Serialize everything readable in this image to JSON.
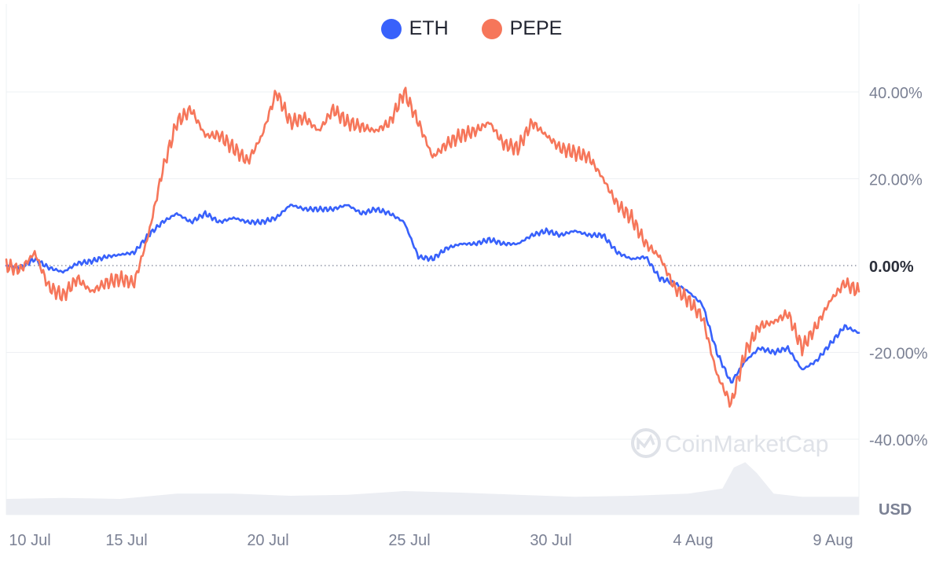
{
  "chart_data": {
    "type": "line",
    "title": "",
    "xlabel": "",
    "ylabel": "",
    "unit_label": "USD",
    "watermark": "CoinMarketCap",
    "x_ticks": [
      "10 Jul",
      "15 Jul",
      "20 Jul",
      "25 Jul",
      "30 Jul",
      "4 Aug",
      "9 Aug"
    ],
    "y_ticks": [
      "40.00%",
      "20.00%",
      "0.00%",
      "-20.00%",
      "-40.00%"
    ],
    "y_tick_values": [
      40,
      20,
      0,
      -20,
      -40
    ],
    "ylim": [
      -50,
      45
    ],
    "x_range_days": [
      0,
      30
    ],
    "legend_position": "top-center",
    "grid": true,
    "series": [
      {
        "name": "ETH",
        "color": "#3861FB",
        "points": [
          [
            0,
            0
          ],
          [
            0.5,
            -0.5
          ],
          [
            1,
            1.5
          ],
          [
            1.5,
            -0.5
          ],
          [
            2,
            -1.5
          ],
          [
            2.5,
            0.5
          ],
          [
            3,
            1
          ],
          [
            3.5,
            2
          ],
          [
            4,
            2.5
          ],
          [
            4.5,
            3
          ],
          [
            5,
            7
          ],
          [
            5.5,
            10
          ],
          [
            6,
            12
          ],
          [
            6.5,
            10
          ],
          [
            7,
            12
          ],
          [
            7.5,
            10
          ],
          [
            8,
            11
          ],
          [
            8.5,
            10
          ],
          [
            9,
            10
          ],
          [
            9.5,
            11
          ],
          [
            10,
            14
          ],
          [
            10.5,
            13
          ],
          [
            11,
            13
          ],
          [
            11.5,
            13
          ],
          [
            12,
            14
          ],
          [
            12.5,
            12
          ],
          [
            13,
            13
          ],
          [
            13.5,
            12
          ],
          [
            14,
            10
          ],
          [
            14.5,
            2
          ],
          [
            15,
            1.5
          ],
          [
            15.5,
            4
          ],
          [
            16,
            5
          ],
          [
            16.5,
            5
          ],
          [
            17,
            6
          ],
          [
            17.5,
            5
          ],
          [
            18,
            5
          ],
          [
            18.5,
            7
          ],
          [
            19,
            8
          ],
          [
            19.5,
            7
          ],
          [
            20,
            8
          ],
          [
            20.5,
            7
          ],
          [
            21,
            7
          ],
          [
            21.5,
            3
          ],
          [
            22,
            1.5
          ],
          [
            22.5,
            2
          ],
          [
            23,
            -3
          ],
          [
            23.5,
            -4
          ],
          [
            24,
            -6
          ],
          [
            24.5,
            -9
          ],
          [
            25,
            -20
          ],
          [
            25.5,
            -27
          ],
          [
            26,
            -22
          ],
          [
            26.5,
            -19
          ],
          [
            27,
            -20
          ],
          [
            27.5,
            -19
          ],
          [
            28,
            -24
          ],
          [
            28.5,
            -22
          ],
          [
            29,
            -18
          ],
          [
            29.5,
            -14
          ],
          [
            30,
            -15.5
          ]
        ]
      },
      {
        "name": "PEPE",
        "color": "#F6765A",
        "points": [
          [
            0,
            0
          ],
          [
            0.5,
            -1
          ],
          [
            1,
            3
          ],
          [
            1.5,
            -5
          ],
          [
            2,
            -7
          ],
          [
            2.5,
            -3
          ],
          [
            3,
            -6
          ],
          [
            3.5,
            -4
          ],
          [
            4,
            -3
          ],
          [
            4.5,
            -4
          ],
          [
            5,
            7
          ],
          [
            5.5,
            22
          ],
          [
            6,
            33
          ],
          [
            6.5,
            36
          ],
          [
            7,
            30
          ],
          [
            7.5,
            30
          ],
          [
            8,
            27
          ],
          [
            8.5,
            24
          ],
          [
            9,
            30
          ],
          [
            9.5,
            40
          ],
          [
            10,
            33
          ],
          [
            10.5,
            34
          ],
          [
            11,
            31
          ],
          [
            11.5,
            36
          ],
          [
            12,
            33
          ],
          [
            12.5,
            32
          ],
          [
            13,
            31
          ],
          [
            13.5,
            33
          ],
          [
            14,
            40
          ],
          [
            14.5,
            33
          ],
          [
            15,
            25
          ],
          [
            15.5,
            28
          ],
          [
            16,
            30
          ],
          [
            16.5,
            31
          ],
          [
            17,
            33
          ],
          [
            17.5,
            28
          ],
          [
            18,
            27
          ],
          [
            18.5,
            33
          ],
          [
            19,
            30
          ],
          [
            19.5,
            27
          ],
          [
            20,
            26
          ],
          [
            20.5,
            25
          ],
          [
            21,
            20
          ],
          [
            21.5,
            14
          ],
          [
            22,
            11
          ],
          [
            22.5,
            5
          ],
          [
            23,
            2
          ],
          [
            23.5,
            -5
          ],
          [
            24,
            -8
          ],
          [
            24.5,
            -12
          ],
          [
            25,
            -25
          ],
          [
            25.5,
            -32
          ],
          [
            26,
            -20
          ],
          [
            26.5,
            -14
          ],
          [
            27,
            -13
          ],
          [
            27.5,
            -11
          ],
          [
            28,
            -19
          ],
          [
            28.5,
            -14
          ],
          [
            29,
            -8
          ],
          [
            29.5,
            -4
          ],
          [
            30,
            -6
          ]
        ]
      }
    ],
    "volume": [
      [
        0,
        3
      ],
      [
        2,
        3.2
      ],
      [
        4,
        3
      ],
      [
        6,
        4
      ],
      [
        8,
        4
      ],
      [
        10,
        3.6
      ],
      [
        12,
        3.8
      ],
      [
        14,
        4.5
      ],
      [
        16,
        4.2
      ],
      [
        18,
        3.8
      ],
      [
        20,
        3.4
      ],
      [
        22,
        3.6
      ],
      [
        24,
        4
      ],
      [
        25.2,
        5
      ],
      [
        25.6,
        9
      ],
      [
        26,
        10
      ],
      [
        26.4,
        8
      ],
      [
        27,
        4
      ],
      [
        28,
        3.4
      ],
      [
        30,
        3.4
      ]
    ],
    "volume_max": 12
  }
}
